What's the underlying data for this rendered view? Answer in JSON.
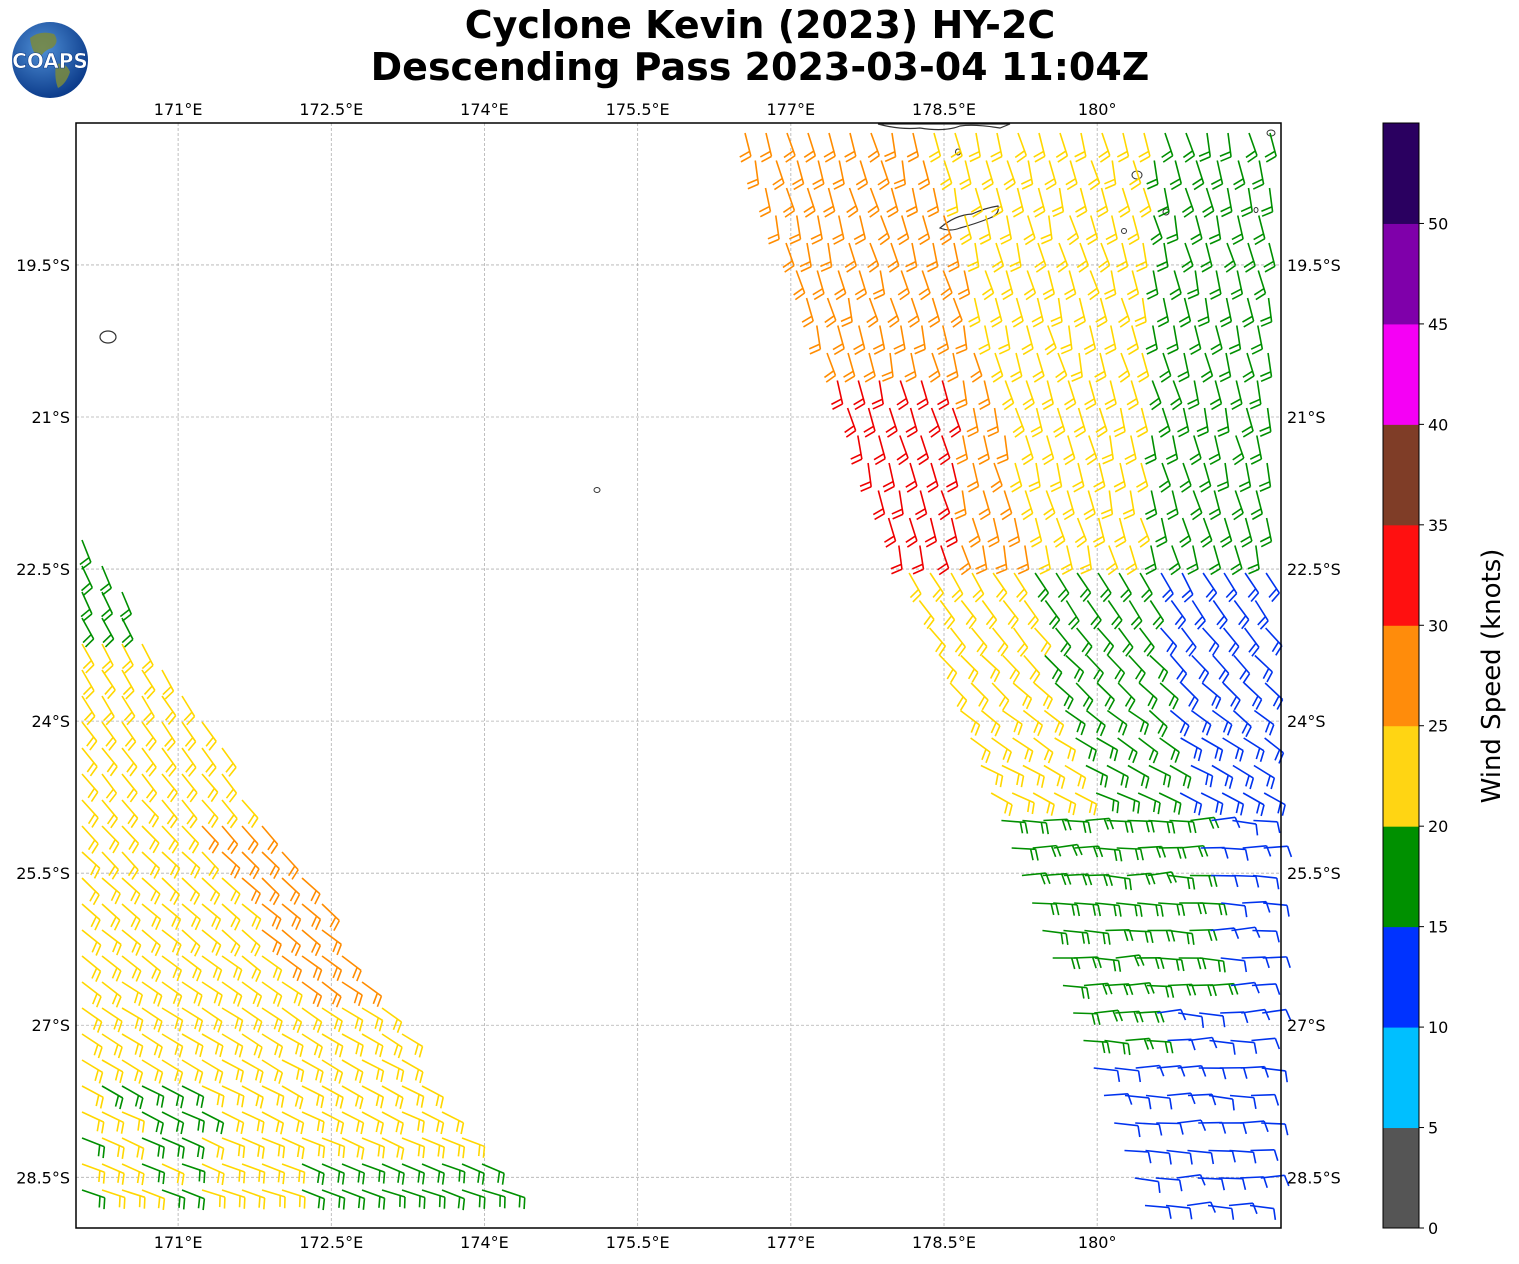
{
  "title": {
    "line1": "Cyclone Kevin (2023) HY-2C",
    "line2": "Descending Pass 2023-03-04 11:04Z"
  },
  "logo": {
    "text": "COAPS",
    "icon": "globe-icon"
  },
  "map": {
    "lon_range": [
      170.0,
      181.8
    ],
    "lat_range": [
      -29.0,
      -18.1
    ],
    "lon_ticks": [
      {
        "value": 171.0,
        "label": "171°E"
      },
      {
        "value": 172.5,
        "label": "172.5°E"
      },
      {
        "value": 174.0,
        "label": "174°E"
      },
      {
        "value": 175.5,
        "label": "175.5°E"
      },
      {
        "value": 177.0,
        "label": "177°E"
      },
      {
        "value": 178.5,
        "label": "178.5°E"
      },
      {
        "value": 180.0,
        "label": "180°"
      }
    ],
    "lat_ticks": [
      {
        "value": -19.5,
        "label": "19.5°S"
      },
      {
        "value": -21.0,
        "label": "21°S"
      },
      {
        "value": -22.5,
        "label": "22.5°S"
      },
      {
        "value": -24.0,
        "label": "24°S"
      },
      {
        "value": -25.5,
        "label": "25.5°S"
      },
      {
        "value": -27.0,
        "label": "27°S"
      },
      {
        "value": -28.5,
        "label": "28.5°S"
      }
    ],
    "grid": true,
    "barb_color_bands": [
      {
        "range": "15-20",
        "color": "#008f00"
      },
      {
        "range": "20-25",
        "color": "#ffd700"
      },
      {
        "range": "25-30",
        "color": "#ff8c00"
      },
      {
        "range": "30-35",
        "color": "#ff0000"
      },
      {
        "range": "10-15",
        "color": "#0033ff"
      }
    ]
  },
  "colorbar": {
    "label": "Wind Speed (knots)",
    "ticks": [
      "0",
      "5",
      "10",
      "15",
      "20",
      "25",
      "30",
      "35",
      "40",
      "45",
      "50"
    ],
    "colors": [
      "#555555",
      "#00bfff",
      "#0033ff",
      "#009000",
      "#ffd513",
      "#ff8c0b",
      "#ff1010",
      "#7f3d27",
      "#f500f5",
      "#7f00aa",
      "#2a0060"
    ]
  }
}
